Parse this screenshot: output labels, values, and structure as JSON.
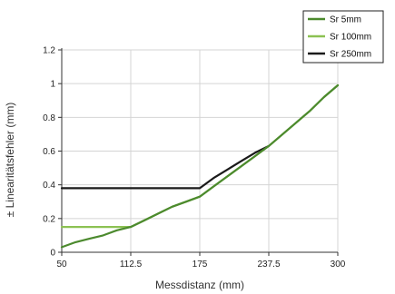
{
  "chart_data": {
    "type": "line",
    "xlabel": "Messdistanz (mm)",
    "ylabel": "± Linearitätsfehler (mm)",
    "xlim": [
      50,
      300
    ],
    "ylim": [
      0,
      1.2
    ],
    "x_ticks": [
      "50",
      "112.5",
      "175",
      "237.5",
      "300"
    ],
    "x_tick_values": [
      50,
      112.5,
      175,
      237.5,
      300
    ],
    "y_ticks": [
      "0",
      "0.2",
      "0.4",
      "0.6",
      "0.8",
      "1",
      "1.2"
    ],
    "y_tick_values": [
      0,
      0.2,
      0.4,
      0.6,
      0.8,
      1,
      1.2
    ],
    "grid": true,
    "legend_position": "top-right",
    "series": [
      {
        "name": "Sr 5mm",
        "color": "#4c8a2e",
        "x": [
          50,
          62.5,
          75,
          87.5,
          100,
          112.5,
          125,
          137.5,
          150,
          162.5,
          175,
          187.5,
          200,
          212.5,
          225,
          237.5,
          250,
          262.5,
          275,
          287.5,
          300
        ],
        "y": [
          0.03,
          0.06,
          0.08,
          0.1,
          0.13,
          0.15,
          0.19,
          0.23,
          0.27,
          0.3,
          0.33,
          0.39,
          0.45,
          0.51,
          0.57,
          0.63,
          0.7,
          0.77,
          0.84,
          0.92,
          0.99
        ]
      },
      {
        "name": "Sr 100mm",
        "color": "#8cc152",
        "x": [
          50,
          112.5,
          125,
          137.5,
          150,
          162.5,
          175,
          187.5,
          200,
          212.5,
          225,
          237.5,
          250,
          262.5,
          275,
          287.5,
          300
        ],
        "y": [
          0.15,
          0.15,
          0.19,
          0.23,
          0.27,
          0.3,
          0.33,
          0.39,
          0.45,
          0.51,
          0.57,
          0.63,
          0.7,
          0.77,
          0.84,
          0.92,
          0.99
        ]
      },
      {
        "name": "Sr 250mm",
        "color": "#1a1a1a",
        "x": [
          50,
          175,
          187.5,
          200,
          212.5,
          225,
          237.5
        ],
        "y": [
          0.38,
          0.38,
          0.44,
          0.49,
          0.54,
          0.59,
          0.63
        ]
      }
    ]
  }
}
